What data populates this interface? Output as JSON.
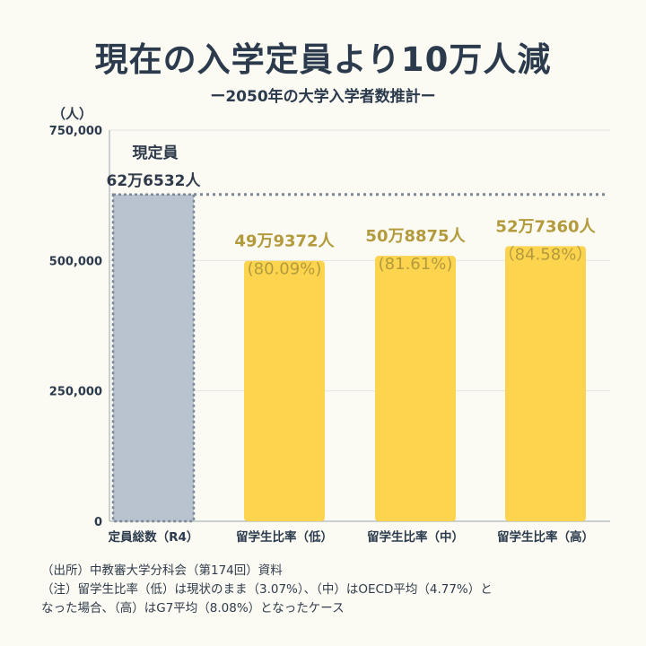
{
  "title": "現在の入学定員より10万人減",
  "subtitle": "ー2050年の大学入学者数推計ー",
  "unit_label": "（人）",
  "chart_data": {
    "type": "bar",
    "categories": [
      "定員総数（R4）",
      "留学生比率（低）",
      "留学生比率（中）",
      "留学生比率（高）"
    ],
    "values": [
      626532,
      499372,
      508875,
      527360
    ],
    "ylim": [
      0,
      750000
    ],
    "yticks": [
      0,
      250000,
      500000,
      750000
    ],
    "ytick_labels": [
      "0",
      "250,000",
      "500,000",
      "750,000"
    ],
    "grid": true,
    "reference_line": 626532,
    "bar_labels": [
      [
        "現定員",
        "62万6532人"
      ],
      [
        "49万9372人",
        "(80.09%)"
      ],
      [
        "50万8875人",
        "(81.61%)"
      ],
      [
        "52万7360人",
        "（84.58%）"
      ]
    ],
    "colors": {
      "current": "#b9c3cf",
      "current_border": "#7a8898",
      "estimate": "#fcd44e",
      "label_current": "#2f3b4b",
      "label_estimate": "#b39a3d",
      "grid": "#e6e6e0",
      "axis": "#9aa3ad"
    }
  },
  "notes": [
    "（出所）中教審大学分科会（第174回）資料",
    "（注）留学生比率（低）は現状のまま（3.07%）、（中）はOECD平均（4.77%）と",
    "なった場合、（高）はG7平均（8.08%）となったケース"
  ]
}
